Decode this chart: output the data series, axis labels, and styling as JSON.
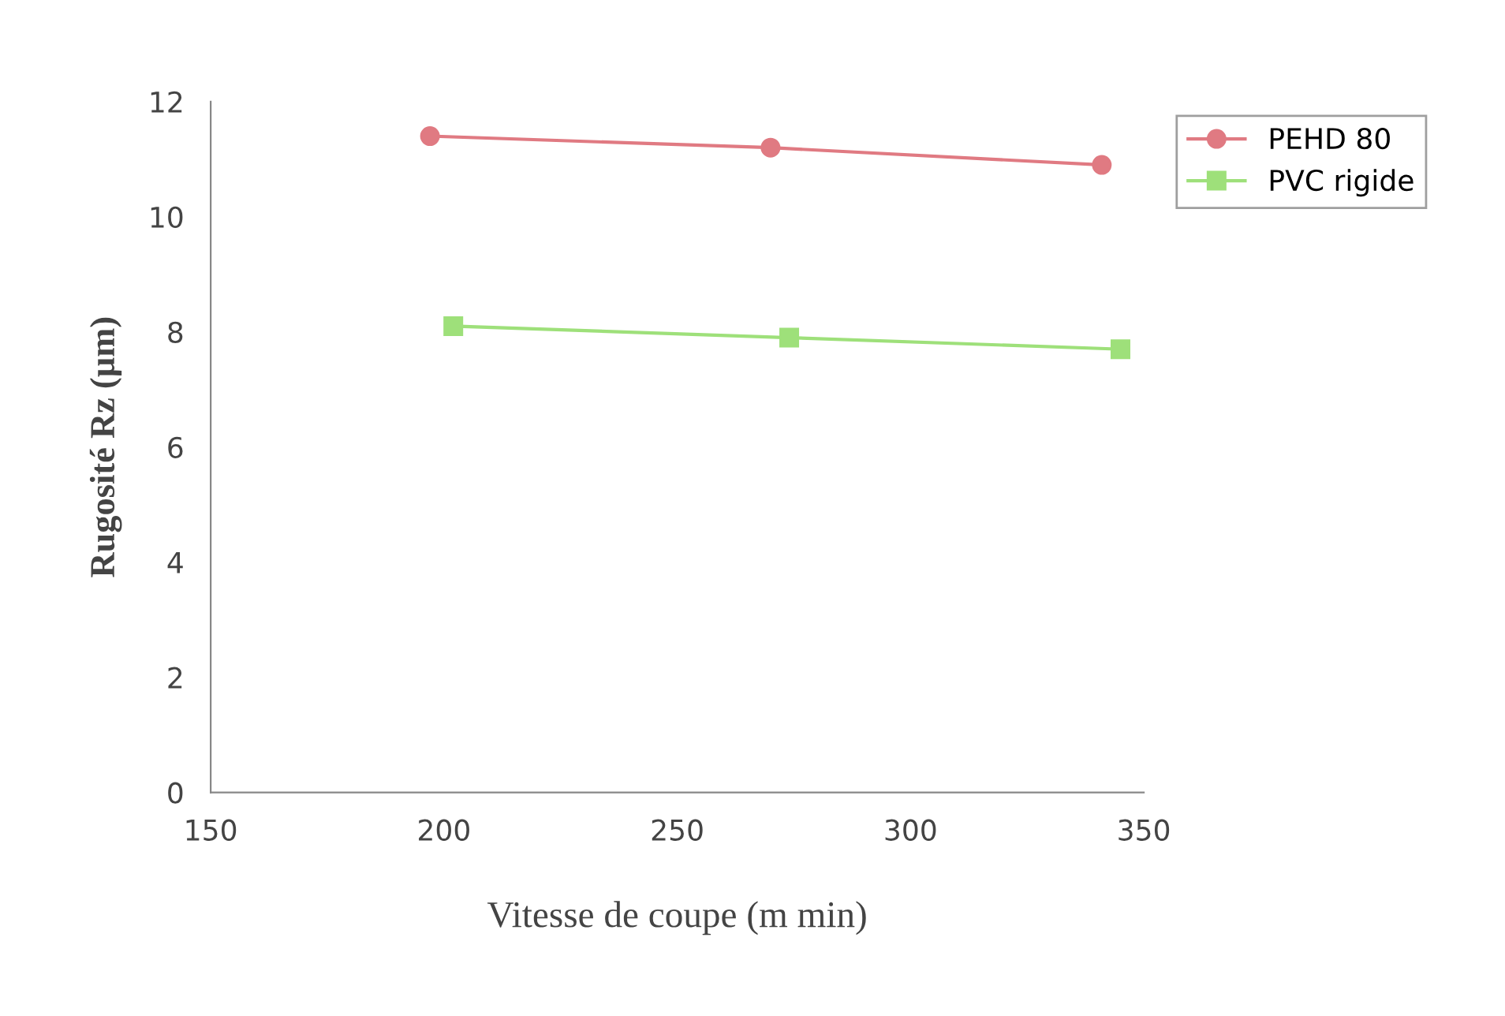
{
  "chart_data": {
    "type": "line",
    "xlabel": "Vitesse de coupe (m min)",
    "ylabel": "Rugosité Rz (µm)",
    "xlim": [
      150,
      350
    ],
    "xticks": [
      150,
      200,
      250,
      300,
      350
    ],
    "ylim": [
      0,
      12
    ],
    "yticks": [
      0,
      2,
      4,
      6,
      8,
      10,
      12
    ],
    "grid": false,
    "legend": "top right",
    "series": [
      {
        "name": "PEHD 80",
        "color": "#e07a82",
        "marker": "circle",
        "x": [
          197,
          270,
          341
        ],
        "values": [
          11.4,
          11.2,
          10.9
        ]
      },
      {
        "name": "PVC rigide",
        "color": "#9ee07a",
        "marker": "square",
        "x": [
          202,
          274,
          345
        ],
        "values": [
          8.1,
          7.9,
          7.7
        ]
      }
    ]
  }
}
